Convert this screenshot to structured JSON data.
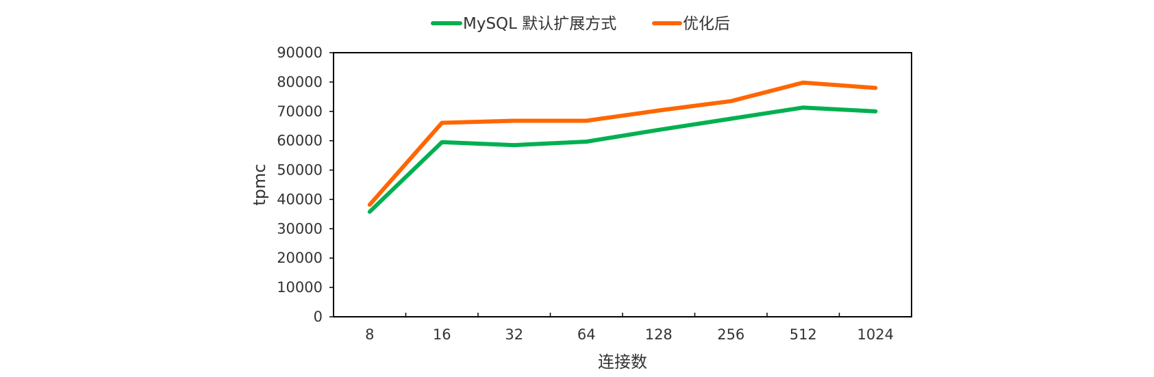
{
  "chart_data": {
    "type": "line",
    "title": "",
    "xlabel": "连接数",
    "ylabel": "tpmc",
    "categories": [
      "8",
      "16",
      "32",
      "64",
      "128",
      "256",
      "512",
      "1024"
    ],
    "ylim": [
      0,
      90000
    ],
    "yticks": [
      0,
      10000,
      20000,
      30000,
      40000,
      50000,
      60000,
      70000,
      80000,
      90000
    ],
    "grid": false,
    "legend_position": "top-center",
    "series": [
      {
        "name": "MySQL 默认扩展方式",
        "color": "#00b050",
        "values": [
          35800,
          59500,
          58500,
          59700,
          63700,
          67500,
          71300,
          70000
        ]
      },
      {
        "name": "优化后",
        "color": "#ff6600",
        "values": [
          38200,
          66100,
          66800,
          66800,
          70300,
          73500,
          79800,
          78000
        ]
      }
    ]
  }
}
